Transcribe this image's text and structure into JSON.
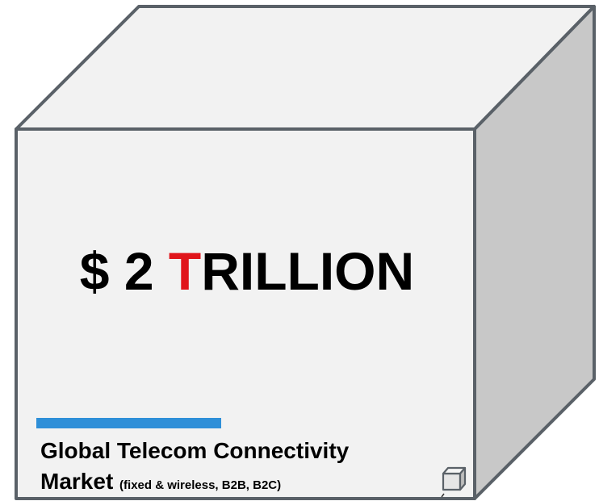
{
  "headline": {
    "prefix": "$ 2 ",
    "accent_letter": "T",
    "suffix": "RILLION"
  },
  "caption": {
    "line1": "Global Telecom Connectivity",
    "line2_main": "Market",
    "line2_note": "(fixed & wireless, B2B, B2C)"
  },
  "colors": {
    "accent": "#e0151b",
    "bar": "#2e8fd8",
    "front_face": "#f2f2f2",
    "top_face": "#f2f2f2",
    "side_face": "#c8c8c8",
    "edge": "#5a6168"
  },
  "icons": {
    "corner": "cube-icon"
  }
}
